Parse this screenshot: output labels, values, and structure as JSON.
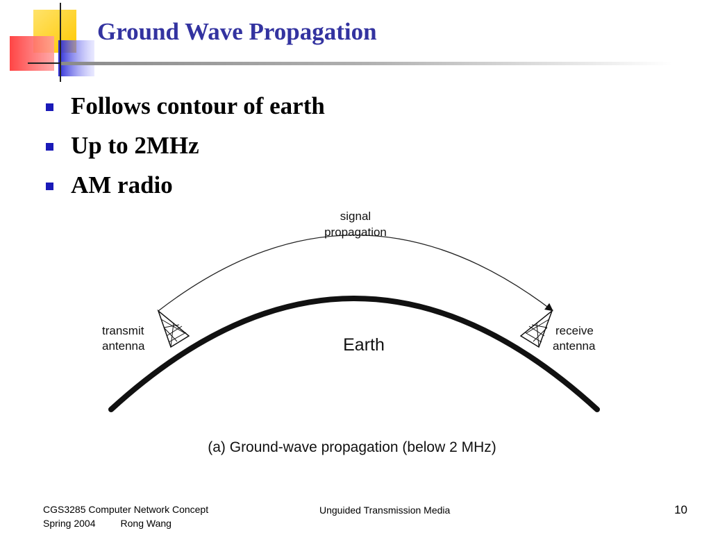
{
  "slide": {
    "title": "Ground Wave Propagation",
    "bullets": [
      "Follows contour of earth",
      "Up to 2MHz",
      "AM radio"
    ],
    "colors": {
      "title": "#3333a0",
      "bullet_marker": "#1a1ab8",
      "logo_yellow": "#ffd700",
      "logo_red": "#ff4d4d",
      "logo_blue": "#3c3cdc"
    }
  },
  "diagram": {
    "signal_label_line1": "signal",
    "signal_label_line2": "propagation",
    "transmit_label_line1": "transmit",
    "transmit_label_line2": "antenna",
    "receive_label_line1": "receive",
    "receive_label_line2": "antenna",
    "earth_label": "Earth",
    "caption": "(a) Ground-wave propagation (below 2 MHz)"
  },
  "footer": {
    "course": "CGS3285 Computer Network Concept",
    "term": "Spring 2004",
    "author": "Rong Wang",
    "topic": "Unguided Transmission Media",
    "page_number": "10"
  }
}
